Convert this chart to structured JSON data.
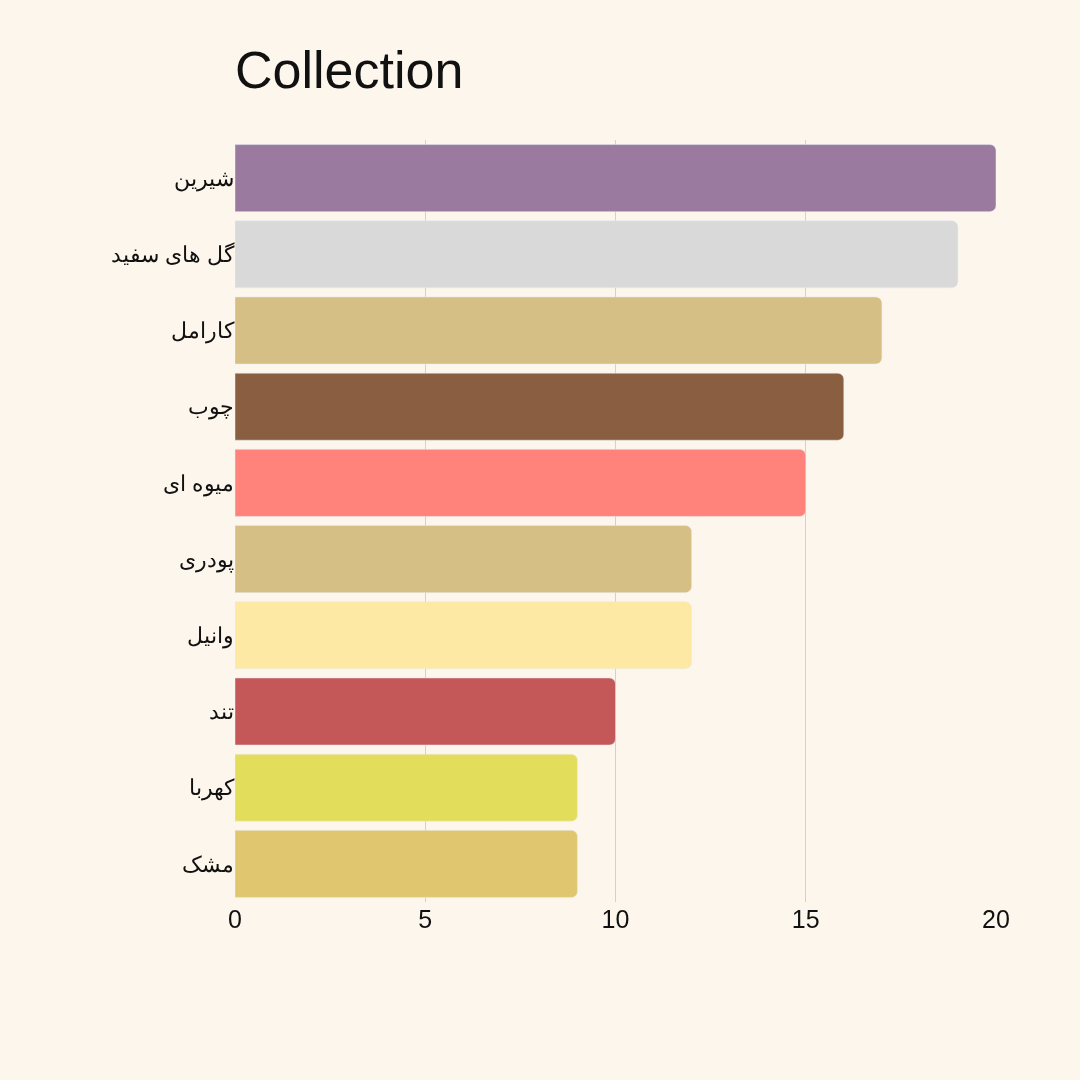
{
  "chart_data": {
    "type": "bar",
    "orientation": "horizontal",
    "title": "Collection",
    "categories": [
      "شیرین",
      "گل های سفید",
      "کارامل",
      "چوب",
      "میوه ای",
      "پودری",
      "وانیل",
      "تند",
      "کهربا",
      "مشک"
    ],
    "values": [
      20,
      19,
      17,
      16,
      15,
      12,
      12,
      10,
      9,
      9
    ],
    "colors": [
      "#9a7b9f",
      "#d9d9d9",
      "#d5bf85",
      "#8a5f41",
      "#ff837a",
      "#d5bf85",
      "#fde9a4",
      "#c45858",
      "#e3dd5c",
      "#e0c76f"
    ],
    "xlim": [
      0,
      20
    ],
    "xticks": [
      0,
      5,
      10,
      15,
      20
    ],
    "grid": "x",
    "legend": false
  }
}
